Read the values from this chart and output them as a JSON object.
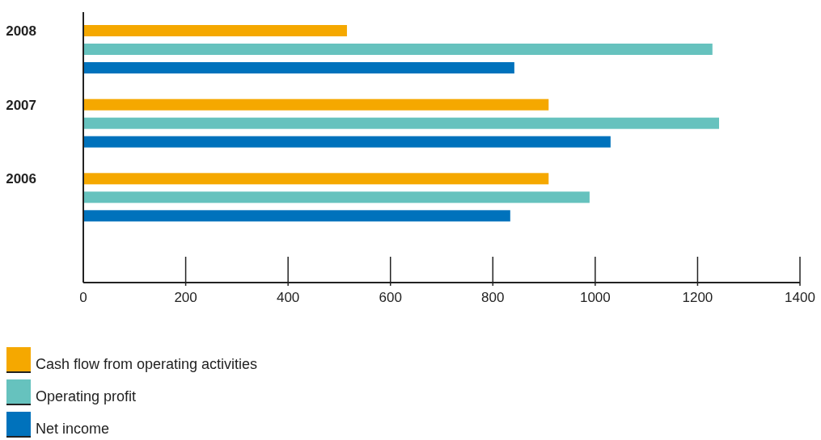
{
  "chart_data": {
    "type": "bar",
    "orientation": "horizontal",
    "categories": [
      "2008",
      "2007",
      "2006"
    ],
    "series": [
      {
        "name": "Cash flow from operating activities",
        "color": "#f5a800",
        "values": [
          515,
          909,
          909
        ]
      },
      {
        "name": "Operating profit",
        "color": "#66c2be",
        "values": [
          1229,
          1242,
          989
        ]
      },
      {
        "name": "Net income",
        "color": "#0072bc",
        "values": [
          842,
          1030,
          834
        ]
      }
    ],
    "xlim": [
      0,
      1400
    ],
    "xticks": [
      0,
      200,
      400,
      600,
      800,
      1000,
      1200,
      1400
    ],
    "grid": false,
    "legend": "bottom left"
  }
}
